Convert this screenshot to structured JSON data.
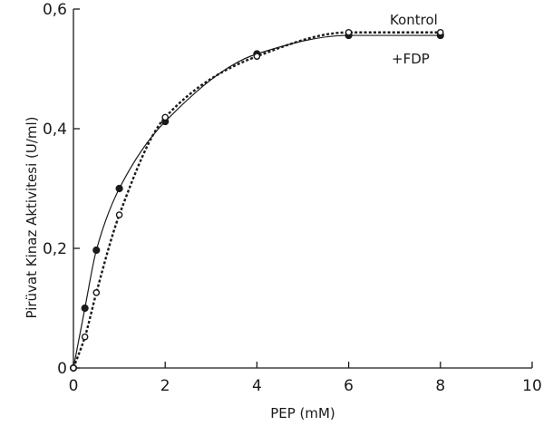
{
  "chart_data": {
    "type": "line",
    "title": "",
    "xlabel": "PEP (mM)",
    "ylabel": "Pirüvat Kinaz Aktivitesi (U/ml)",
    "xlim": [
      0,
      10
    ],
    "ylim": [
      0,
      0.6
    ],
    "xticks": [
      0,
      2,
      4,
      6,
      8,
      10
    ],
    "xtick_labels": [
      "0",
      "2",
      "4",
      "6",
      "8",
      "10"
    ],
    "yticks": [
      0,
      0.2,
      0.4,
      0.6
    ],
    "ytick_labels": [
      "0",
      "0,2",
      "0,4",
      "0,6"
    ],
    "grid": false,
    "series": [
      {
        "name": "Kontrol",
        "marker": "filled-circle",
        "line_style": "solid",
        "color": "#1a1a1a",
        "x": [
          0,
          0.25,
          0.5,
          1,
          2,
          4,
          6,
          8
        ],
        "y": [
          0,
          0.1,
          0.197,
          0.3,
          0.412,
          0.525,
          0.556,
          0.556
        ]
      },
      {
        "name": "+FDP",
        "marker": "open-circle",
        "line_style": "dotted",
        "color": "#1a1a1a",
        "x": [
          0,
          0.25,
          0.5,
          1,
          2,
          4,
          6,
          8
        ],
        "y": [
          0,
          0.052,
          0.126,
          0.256,
          0.419,
          0.521,
          0.561,
          0.561
        ]
      }
    ]
  }
}
